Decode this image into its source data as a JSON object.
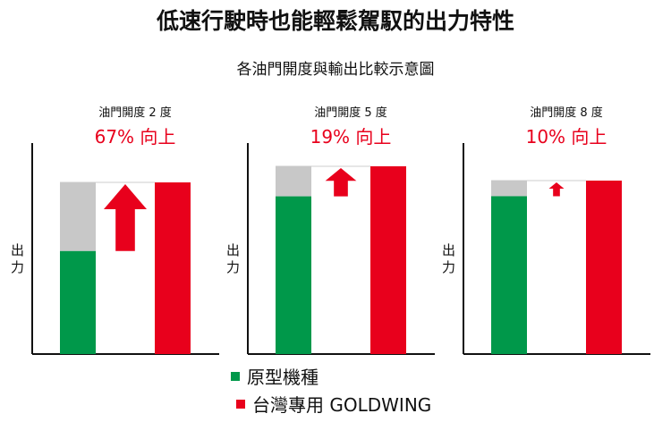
{
  "title": "低速行駛時也能輕鬆駕馭的出力特性",
  "subtitle": "各油門開度與輸出比較示意圖",
  "colors": {
    "original": "#00984a",
    "goldwing": "#e8001c",
    "gap": "#c8c8c8",
    "axis": "#111111"
  },
  "chart_data": {
    "type": "bar",
    "title": "各油門開度與輸出比較示意圖",
    "ylabel": "出力",
    "legend_position": "bottom",
    "series_names": [
      "原型機種",
      "台灣專用 GOLDWING"
    ],
    "panels": [
      {
        "label": "油門開度 2 度",
        "improvement": "67% 向上",
        "original": 60,
        "goldwing": 100
      },
      {
        "label": "油門開度 5 度",
        "improvement": "19% 向上",
        "original": 84,
        "goldwing": 100
      },
      {
        "label": "油門開度 8 度",
        "improvement": "10% 向上",
        "original": 91,
        "goldwing": 100
      }
    ]
  },
  "legend": {
    "original": "原型機種",
    "goldwing": "台灣專用 GOLDWING"
  }
}
